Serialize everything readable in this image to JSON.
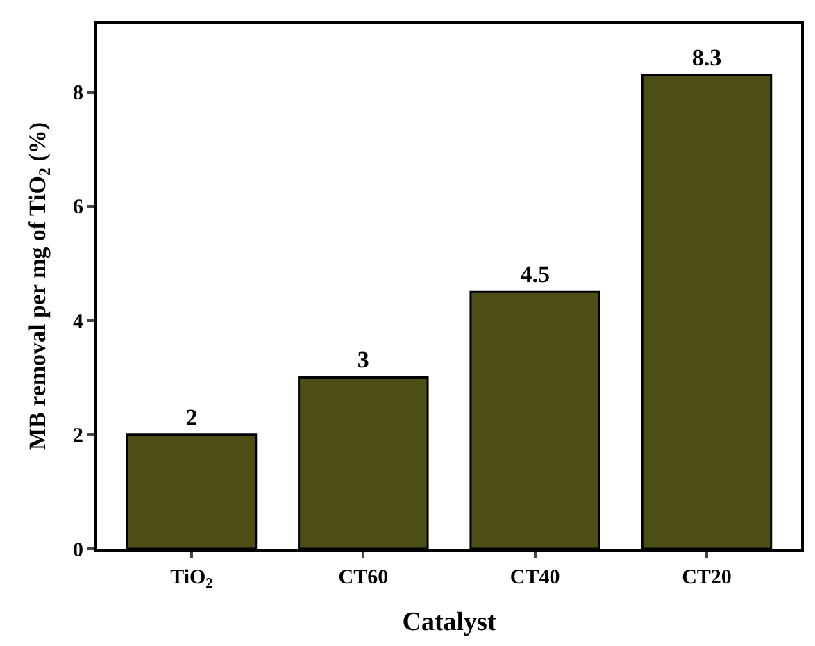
{
  "chart_data": {
    "type": "bar",
    "xlabel": "Catalyst",
    "ylabel": "MB removal per mg of TiO$_{2}$ (%)",
    "categories": [
      "TiO$_{2}$",
      "CT60",
      "CT40",
      "CT20"
    ],
    "values": [
      2,
      3,
      4.5,
      8.3
    ],
    "color": "#4d4d16",
    "ylim": [
      0,
      9.2
    ],
    "yticks": [
      0,
      2,
      4,
      6,
      8
    ],
    "data_labels": true
  }
}
